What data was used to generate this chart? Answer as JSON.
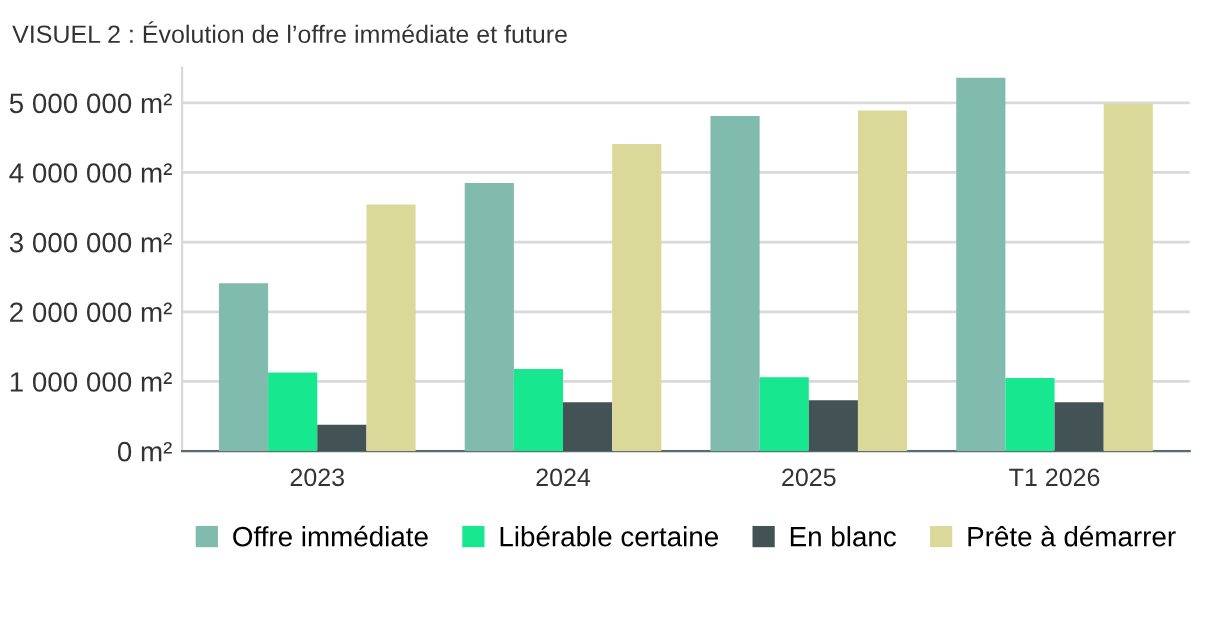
{
  "chart_data": {
    "type": "bar",
    "title": "VISUEL 2 : Évolution de l’offre immédiate et future",
    "categories": [
      "2023",
      "2024",
      "2025",
      "T1 2026"
    ],
    "series": [
      {
        "name": "Offre immédiate",
        "color": "#80bbad",
        "values": [
          2410000,
          3850000,
          4810000,
          5360000
        ]
      },
      {
        "name": "Libérable certaine",
        "color": "#17e88f",
        "values": [
          1130000,
          1180000,
          1060000,
          1050000
        ]
      },
      {
        "name": "En blanc",
        "color": "#435254",
        "values": [
          380000,
          700000,
          730000,
          700000
        ]
      },
      {
        "name": "Prête à démarrer",
        "color": "#dbd99a",
        "values": [
          3540000,
          4410000,
          4890000,
          4990000
        ]
      }
    ],
    "ylim": [
      0,
      5500000
    ],
    "yticks": [
      {
        "value": 0,
        "label": "0 m²"
      },
      {
        "value": 1000000,
        "label": "1 000 000 m²"
      },
      {
        "value": 2000000,
        "label": "2 000 000 m²"
      },
      {
        "value": 3000000,
        "label": "3 000 000 m²"
      },
      {
        "value": 4000000,
        "label": "4 000 000 m²"
      },
      {
        "value": 5000000,
        "label": "5 000 000 m²"
      }
    ],
    "grid": "y",
    "legend": "bottom"
  }
}
